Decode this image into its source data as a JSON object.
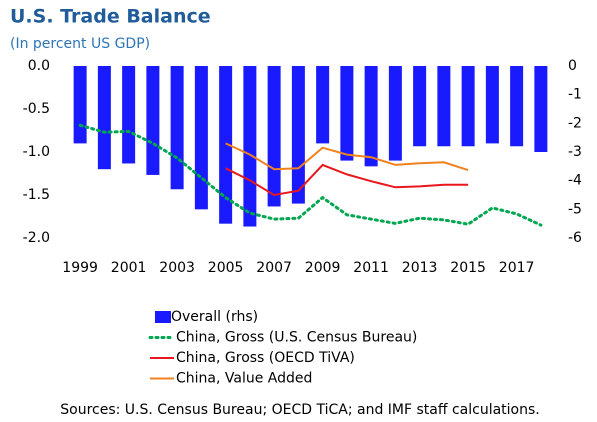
{
  "chart_data": {
    "type": "bar_line",
    "title": "U.S. Trade Balance",
    "subtitle": "(In percent US GDP)",
    "source": "Sources: U.S. Census Bureau; OECD TiCA; and IMF staff calculations.",
    "categories": [
      "1999",
      null,
      "2001",
      null,
      "2003",
      null,
      "2005",
      null,
      "2007",
      null,
      "2009",
      null,
      "2011",
      null,
      "2013",
      null,
      "2015",
      null,
      "2017",
      null
    ],
    "ylim": [
      -2.0,
      0.0
    ],
    "yticks": [
      {
        "value": 0.0,
        "label": "0.0"
      },
      {
        "value": -0.5,
        "label": "-0.5"
      },
      {
        "value": -1.0,
        "label": "-1.0"
      },
      {
        "value": -1.5,
        "label": "-1.5"
      },
      {
        "value": -2.0,
        "label": "-2.0"
      }
    ],
    "y2lim": [
      -6,
      0
    ],
    "y2ticks": [
      0,
      -1,
      -2,
      -3,
      -4,
      -5,
      -6
    ],
    "series": [
      {
        "name": "Overall (rhs)",
        "type": "bar",
        "axis": "y2",
        "color": "#1a1aff",
        "values": [
          -2.7,
          -3.6,
          -3.4,
          -3.8,
          -4.3,
          -5.0,
          -5.5,
          -5.6,
          -4.9,
          -4.8,
          -2.7,
          -3.3,
          -3.5,
          -3.3,
          -2.8,
          -2.8,
          -2.8,
          -2.7,
          -2.8,
          -3.0
        ]
      },
      {
        "name": "China, Gross (U.S. Census Bureau)",
        "type": "line",
        "dash": "dotted",
        "color": "#00a650",
        "values": [
          -0.69,
          -0.77,
          -0.76,
          -0.9,
          -1.07,
          -1.3,
          -1.53,
          -1.71,
          -1.78,
          -1.77,
          -1.53,
          -1.73,
          -1.78,
          -1.83,
          -1.77,
          -1.79,
          -1.84,
          -1.65,
          -1.72,
          -1.85
        ]
      },
      {
        "name": "China, Gross (OECD TiVA)",
        "type": "line",
        "color": "#e8171b",
        "values": [
          null,
          null,
          null,
          null,
          null,
          null,
          -1.19,
          -1.33,
          -1.5,
          -1.45,
          -1.15,
          -1.26,
          -1.34,
          -1.41,
          -1.4,
          -1.38,
          -1.38,
          null,
          null,
          null
        ]
      },
      {
        "name": "China, Value Added",
        "type": "line",
        "color": "#f0821e",
        "values": [
          null,
          null,
          null,
          null,
          null,
          null,
          -0.9,
          -1.03,
          -1.2,
          -1.19,
          -0.95,
          -1.03,
          -1.06,
          -1.15,
          -1.13,
          -1.12,
          -1.21,
          null,
          null,
          null
        ]
      }
    ]
  }
}
